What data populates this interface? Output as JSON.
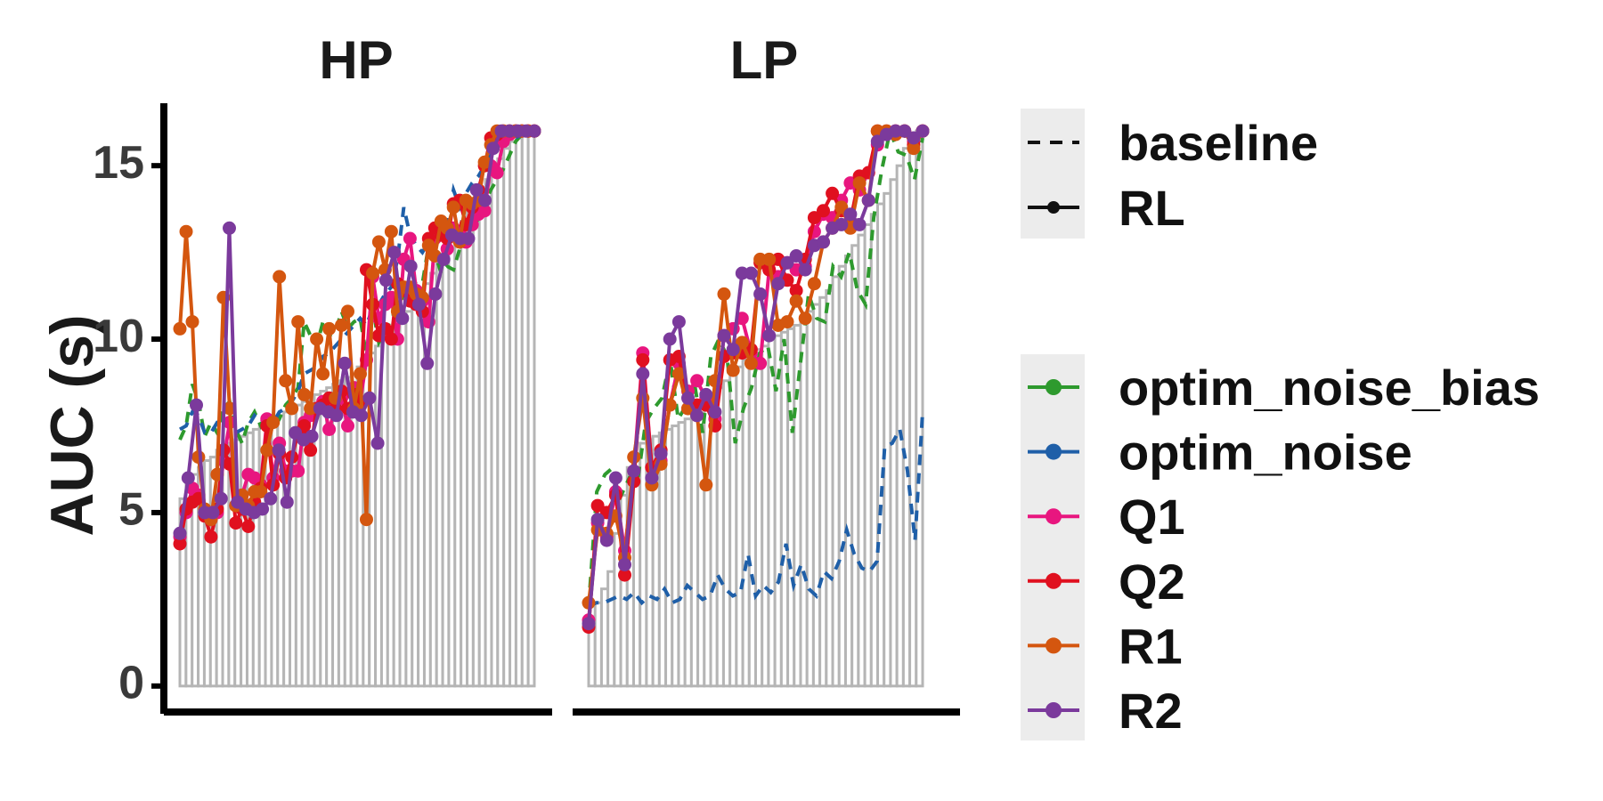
{
  "chart_data": {
    "type": "line",
    "ylabel": "AUC (s)",
    "yticks": [
      0,
      5,
      10,
      15
    ],
    "ylim": [
      -0.8,
      16.8
    ],
    "grid": false,
    "legend_position": "right",
    "linetype_legend": [
      {
        "name": "baseline",
        "style": "dashed"
      },
      {
        "name": "RL",
        "style": "solid-point"
      }
    ],
    "colors": {
      "optim_noise": "#1f5fa8",
      "optim_noise_bias": "#2e9a2e",
      "Q1": "#e8167f",
      "Q2": "#e0101f",
      "R1": "#d4560f",
      "R2": "#7b3a9c",
      "bars": "#b5b5b5"
    },
    "panels": [
      {
        "title": "HP",
        "bars": [
          5.4,
          5.9,
          6.1,
          6.3,
          6.5,
          6.6,
          6.8,
          6.9,
          7.0,
          7.1,
          7.2,
          7.3,
          7.4,
          7.5,
          7.6,
          7.7,
          7.8,
          7.9,
          8.0,
          8.1,
          8.2,
          8.3,
          8.4,
          8.5,
          8.6,
          8.7,
          8.8,
          8.9,
          9.0,
          9.2,
          9.4,
          9.6,
          9.8,
          10.0,
          10.2,
          10.4,
          10.6,
          10.8,
          11.0,
          11.3,
          11.6,
          11.9,
          12.2,
          12.5,
          12.8,
          13.1,
          13.4,
          13.7,
          14.0,
          14.3,
          14.6,
          14.9,
          15.2,
          15.5,
          15.7,
          15.8,
          15.9,
          16.0
        ],
        "series": [
          {
            "name": "optim_noise_bias",
            "kind": "baseline",
            "values": [
              7.1,
              7.5,
              8.7,
              8.2,
              7.2,
              7.6,
              7.3,
              8.0,
              8.2,
              7.4,
              7.0,
              7.6,
              7.9,
              7.5,
              7.8,
              7.4,
              7.7,
              8.1,
              8.3,
              8.6,
              10.5,
              10.1,
              9.8,
              10.5,
              10.1,
              10.2,
              10.8,
              10.3,
              10.5,
              10.6,
              9.5,
              10.9,
              9.9,
              10.2,
              10.6,
              10.9,
              11.3,
              11.2,
              11.6,
              11.6,
              12.7,
              12.5,
              11.9,
              12.1,
              12.0,
              12.6,
              12.8,
              13.1,
              13.5,
              13.9,
              14.3,
              14.6,
              14.9,
              15.3,
              15.7,
              15.9,
              16.0,
              16.0
            ]
          },
          {
            "name": "optim_noise",
            "kind": "baseline",
            "values": [
              7.4,
              7.5,
              7.9,
              7.8,
              7.3,
              7.3,
              7.6,
              7.6,
              7.7,
              7.3,
              7.4,
              7.5,
              7.8,
              7.6,
              7.7,
              7.6,
              7.9,
              8.0,
              8.2,
              8.5,
              9.0,
              9.1,
              9.2,
              9.5,
              9.6,
              9.8,
              10.0,
              10.2,
              10.4,
              10.6,
              10.4,
              10.9,
              11.0,
              11.3,
              11.5,
              12.3,
              13.8,
              13.0,
              12.7,
              12.5,
              12.8,
              13.0,
              13.1,
              13.3,
              14.3,
              13.8,
              14.2,
              14.5,
              14.7,
              15.0,
              15.3,
              15.5,
              15.6,
              15.7,
              15.8,
              15.9,
              16.0,
              16.0
            ]
          },
          {
            "name": "Q1",
            "kind": "rl",
            "values": [
              4.3,
              5.0,
              5.7,
              5.5,
              5.0,
              4.8,
              5.0,
              6.5,
              7.6,
              5.2,
              5.5,
              6.1,
              6.0,
              5.8,
              7.7,
              6.0,
              7.0,
              6.2,
              6.2,
              6.2,
              7.6,
              7.8,
              8.0,
              8.2,
              7.4,
              8.0,
              8.3,
              7.5,
              8.6,
              8.2,
              9.4,
              11.8,
              10.6,
              11.0,
              11.2,
              10.0,
              12.3,
              12.9,
              11.4,
              11.1,
              10.5,
              12.9,
              13.2,
              12.6,
              13.2,
              13.1,
              12.8,
              13.3,
              13.6,
              13.7,
              15.0,
              14.8,
              15.7,
              15.9,
              16.0,
              16.0,
              16.0,
              16.0
            ]
          },
          {
            "name": "Q2",
            "kind": "rl",
            "values": [
              4.1,
              5.1,
              5.3,
              5.4,
              4.9,
              4.3,
              5.1,
              6.8,
              6.4,
              4.7,
              5.1,
              4.6,
              5.3,
              5.7,
              7.5,
              5.8,
              6.7,
              6.0,
              6.6,
              7.3,
              7.5,
              6.8,
              8.0,
              8.1,
              8.3,
              8.0,
              8.5,
              8.0,
              8.4,
              8.2,
              12.0,
              11.0,
              10.1,
              10.3,
              10.0,
              11.6,
              11.4,
              11.1,
              11.0,
              10.8,
              12.9,
              13.2,
              13.0,
              12.9,
              13.9,
              14.0,
              13.3,
              13.8,
              14.3,
              15.0,
              15.8,
              15.9,
              16.0,
              16.0,
              16.0,
              16.0,
              16.0,
              16.0
            ]
          },
          {
            "name": "R1",
            "kind": "rl",
            "values": [
              10.3,
              13.1,
              10.5,
              6.6,
              5.1,
              4.8,
              6.1,
              11.2,
              8.0,
              5.2,
              5.5,
              5.2,
              5.6,
              5.6,
              6.8,
              7.6,
              11.8,
              8.8,
              8.0,
              10.5,
              8.4,
              8.0,
              10.0,
              9.0,
              10.3,
              8.3,
              10.4,
              10.8,
              8.0,
              9.0,
              4.8,
              11.9,
              12.8,
              12.0,
              13.1,
              10.8,
              11.5,
              11.5,
              11.3,
              11.2,
              12.7,
              12.4,
              13.4,
              13.2,
              13.8,
              12.8,
              14.0,
              13.9,
              14.0,
              15.1,
              15.6,
              16.0,
              16.0,
              16.0,
              16.0,
              16.0,
              16.0,
              16.0
            ]
          },
          {
            "name": "R2",
            "kind": "rl",
            "values": [
              4.4,
              6.0,
              8.1,
              5.0,
              5.0,
              5.4,
              13.2,
              5.3,
              5.1,
              5.0,
              5.1,
              5.4,
              6.8,
              5.3,
              7.3,
              7.1,
              7.2,
              8.0,
              7.9,
              7.8,
              9.3,
              7.9,
              7.8,
              8.3,
              7.0,
              11.7,
              12.5,
              10.6,
              12.1,
              11.0,
              9.3,
              11.3,
              12.3,
              13.0,
              12.9,
              12.9,
              14.3,
              14.0,
              15.5,
              16.0,
              16.0,
              16.0,
              16.0,
              16.0
            ]
          }
        ]
      },
      {
        "title": "LP",
        "bars": [
          2.0,
          2.4,
          2.8,
          3.3,
          4.4,
          5.5,
          6.3,
          6.6,
          7.0,
          7.1,
          7.2,
          7.3,
          7.4,
          7.5,
          7.6,
          7.7,
          7.8,
          8.0,
          8.2,
          8.4,
          8.6,
          8.8,
          9.0,
          9.2,
          9.4,
          9.6,
          9.7,
          9.8,
          10.0,
          10.1,
          10.2,
          10.3,
          10.4,
          10.6,
          10.8,
          11.0,
          11.2,
          11.4,
          11.8,
          12.1,
          12.4,
          12.7,
          13.0,
          13.3,
          13.6,
          13.9,
          14.2,
          14.6,
          15.0,
          15.5,
          15.8,
          16.0
        ],
        "series": [
          {
            "name": "optim_noise_bias",
            "kind": "baseline",
            "values": [
              2.3,
              5.6,
              6.1,
              6.3,
              5.5,
              6.0,
              5.9,
              7.6,
              8.0,
              8.3,
              9.4,
              7.7,
              8.1,
              8.7,
              7.3,
              9.5,
              10.0,
              9.5,
              7.0,
              8.0,
              8.6,
              9.6,
              9.8,
              8.5,
              10.0,
              7.3,
              9.3,
              11.3,
              10.6,
              10.5,
              12.1,
              11.8,
              12.5,
              11.4,
              11.0,
              13.5,
              14.9,
              16.0,
              15.4,
              15.3,
              14.6,
              15.8
            ]
          },
          {
            "name": "optim_noise",
            "kind": "baseline",
            "values": [
              2.3,
              2.4,
              2.4,
              2.5,
              2.6,
              2.5,
              2.7,
              2.4,
              2.6,
              2.5,
              2.8,
              2.4,
              2.5,
              2.9,
              2.7,
              2.5,
              2.6,
              3.2,
              2.8,
              2.6,
              2.7,
              3.8,
              2.6,
              2.9,
              2.7,
              3.0,
              4.1,
              2.9,
              3.5,
              2.8,
              2.6,
              3.3,
              3.1,
              3.6,
              4.5,
              3.8,
              3.4,
              3.3,
              3.6,
              6.9,
              7.0,
              7.4,
              6.2,
              4.2,
              7.9
            ]
          },
          {
            "name": "Q1",
            "kind": "rl",
            "values": [
              1.9,
              4.7,
              4.3,
              5.6,
              3.9,
              6.2,
              9.6,
              6.3,
              6.5,
              8.1,
              9.3,
              8.5,
              8.8,
              8.3,
              7.7,
              10.1,
              10.3,
              10.6,
              9.6,
              9.3,
              12.0,
              11.8,
              12.2,
              12.0,
              12.1,
              13.1,
              13.6,
              13.5,
              14.0,
              14.5,
              14.3,
              14.8,
              15.6,
              15.9,
              16.0,
              16.0,
              15.7,
              16.0
            ]
          },
          {
            "name": "Q2",
            "kind": "rl",
            "values": [
              1.7,
              5.2,
              5.0,
              5.5,
              3.2,
              5.9,
              9.4,
              6.3,
              6.8,
              9.4,
              9.5,
              8.0,
              8.1,
              8.1,
              7.5,
              9.5,
              9.6,
              9.6,
              9.7,
              12.2,
              12.0,
              12.3,
              11.7,
              11.4,
              12.3,
              13.5,
              13.7,
              14.2,
              13.7,
              13.4,
              14.7,
              14.8,
              16.0,
              16.0,
              16.0,
              16.0,
              15.6,
              16.0
            ]
          },
          {
            "name": "R1",
            "kind": "rl",
            "values": [
              2.4,
              4.5,
              4.4,
              4.9,
              3.7,
              6.6,
              8.3,
              5.8,
              6.4,
              8.1,
              9.0,
              8.0,
              7.8,
              5.8,
              8.8,
              11.3,
              9.1,
              9.9,
              9.3,
              12.3,
              12.3,
              10.4,
              10.5,
              11.1,
              10.6,
              11.6,
              12.8,
              13.2,
              13.8,
              13.2,
              14.5,
              14.0,
              16.0,
              16.0,
              15.9,
              16.0,
              15.5,
              16.0
            ]
          },
          {
            "name": "R2",
            "kind": "rl",
            "values": [
              1.8,
              4.8,
              4.2,
              6.0,
              3.5,
              6.2,
              9.0,
              6.0,
              6.7,
              10.0,
              10.5,
              8.3,
              7.8,
              8.4,
              7.9,
              10.1,
              9.7,
              11.9,
              11.9,
              11.3,
              10.1,
              11.6,
              12.2,
              12.4,
              12.0,
              12.7,
              12.8,
              13.2,
              13.3,
              13.6,
              13.3,
              14.0,
              15.7,
              15.9,
              16.0,
              16.0,
              15.8,
              16.0
            ]
          }
        ]
      }
    ]
  }
}
